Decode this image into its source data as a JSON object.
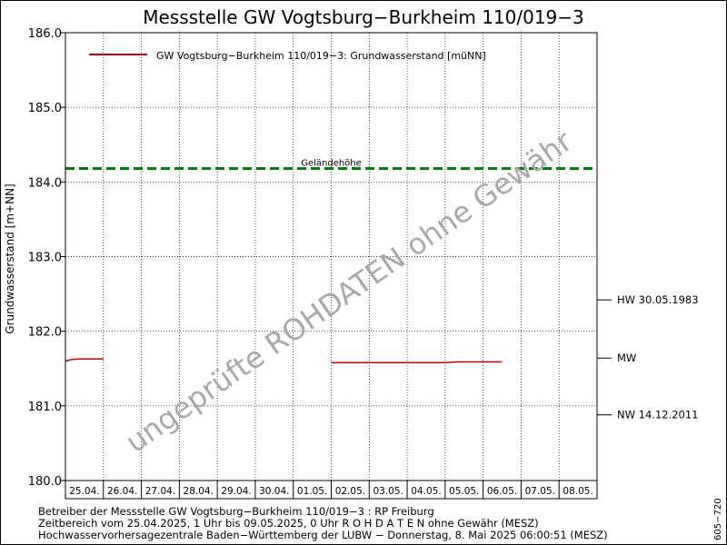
{
  "chart_data": {
    "type": "line",
    "title": "Messstelle GW Vogtsburg−Burkheim 110/019−3",
    "ylabel": "Grundwasserstand [m+NN]",
    "ylim": [
      180.0,
      186.0
    ],
    "y_ticks": [
      "180.0",
      "181.0",
      "182.0",
      "183.0",
      "184.0",
      "185.0",
      "186.0"
    ],
    "x_ticks": [
      "25.04.",
      "26.04.",
      "27.04.",
      "28.04.",
      "29.04.",
      "30.04.",
      "01.05.",
      "02.05.",
      "03.05.",
      "04.05.",
      "05.05.",
      "06.05.",
      "07.05.",
      "08.05."
    ],
    "xlim_days": [
      0,
      14
    ],
    "grid": true,
    "legend_position": "top-left",
    "series": [
      {
        "name": "GW Vogtsburg−Burkheim 110/019−3: Grundwasserstand  [müNN]",
        "color": "#cc0000",
        "segments": [
          [
            [
              0.0,
              181.6
            ],
            [
              0.15,
              181.62
            ],
            [
              0.4,
              181.63
            ],
            [
              1.0,
              181.63
            ]
          ],
          [
            [
              7.0,
              181.58
            ],
            [
              10.0,
              181.58
            ],
            [
              10.3,
              181.59
            ],
            [
              11.5,
              181.59
            ]
          ]
        ]
      }
    ],
    "reference_lines": [
      {
        "label": "Geländehöhe",
        "value": 184.18,
        "color": "#008000",
        "style": "dashed"
      }
    ],
    "right_markers": [
      {
        "label": "HW 30.05.1983",
        "value": 182.42
      },
      {
        "label": "MW",
        "value": 181.64
      },
      {
        "label": "NW 14.12.2011",
        "value": 180.88
      }
    ],
    "watermark": "ungeprüfte ROHDATEN ohne Gewähr",
    "footer_lines": [
      "Betreiber der Messstelle GW Vogtsburg−Burkheim 110/019−3 : RP Freiburg",
      "Zeitbereich vom 25.04.2025, 1 Uhr bis 09.05.2025, 0 Uhr   R O H D A T E N ohne Gewähr (MESZ)",
      "Hochwasservorhersagezentrale Baden−Württemberg der LUBW − Donnerstag, 8. Mai 2025 06:00:51 (MESZ)"
    ],
    "side_code": "605−720"
  }
}
